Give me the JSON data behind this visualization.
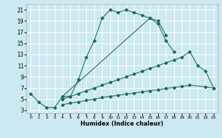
{
  "xlabel": "Humidex (Indice chaleur)",
  "bg_color": "#cce8f0",
  "grid_color": "#ffffff",
  "line_color": "#1a6b5a",
  "xlim": [
    -0.5,
    23.5
  ],
  "ylim": [
    2.5,
    22
  ],
  "xticks": [
    0,
    1,
    2,
    3,
    4,
    5,
    6,
    7,
    8,
    9,
    10,
    11,
    12,
    13,
    14,
    15,
    16,
    17,
    18,
    19,
    20,
    21,
    22,
    23
  ],
  "yticks": [
    3,
    5,
    7,
    9,
    11,
    13,
    15,
    17,
    19,
    21
  ],
  "series": [
    {
      "x": [
        0,
        1,
        2,
        3,
        4,
        5,
        6,
        7,
        8,
        9,
        10,
        11,
        12,
        13,
        14,
        15,
        16,
        17
      ],
      "y": [
        6,
        4.5,
        3.5,
        3.5,
        5.5,
        5.5,
        8.5,
        12.5,
        15.5,
        19.5,
        21,
        20.5,
        21,
        20.5,
        20,
        19.5,
        19,
        16.5
      ]
    },
    {
      "x": [
        4,
        15,
        16,
        17,
        18
      ],
      "y": [
        5.5,
        19.5,
        18.5,
        15.5,
        13.5
      ]
    },
    {
      "x": [
        4,
        5,
        6,
        7,
        8,
        9,
        10,
        11,
        12,
        13,
        14,
        15,
        16,
        17,
        18,
        19,
        20,
        21,
        22,
        23
      ],
      "y": [
        5,
        5.5,
        6,
        6.5,
        7,
        7.5,
        8,
        8.5,
        9,
        9.5,
        10,
        10.5,
        11,
        11.5,
        12,
        12.5,
        13.5,
        11,
        10,
        7
      ]
    },
    {
      "x": [
        4,
        5,
        6,
        7,
        8,
        9,
        10,
        11,
        12,
        13,
        14,
        15,
        16,
        17,
        18,
        19,
        20,
        22,
        23
      ],
      "y": [
        4,
        4.3,
        4.5,
        4.8,
        5,
        5.3,
        5.5,
        5.7,
        5.9,
        6.1,
        6.3,
        6.5,
        6.7,
        6.9,
        7.1,
        7.3,
        7.5,
        7.2,
        7
      ]
    }
  ]
}
